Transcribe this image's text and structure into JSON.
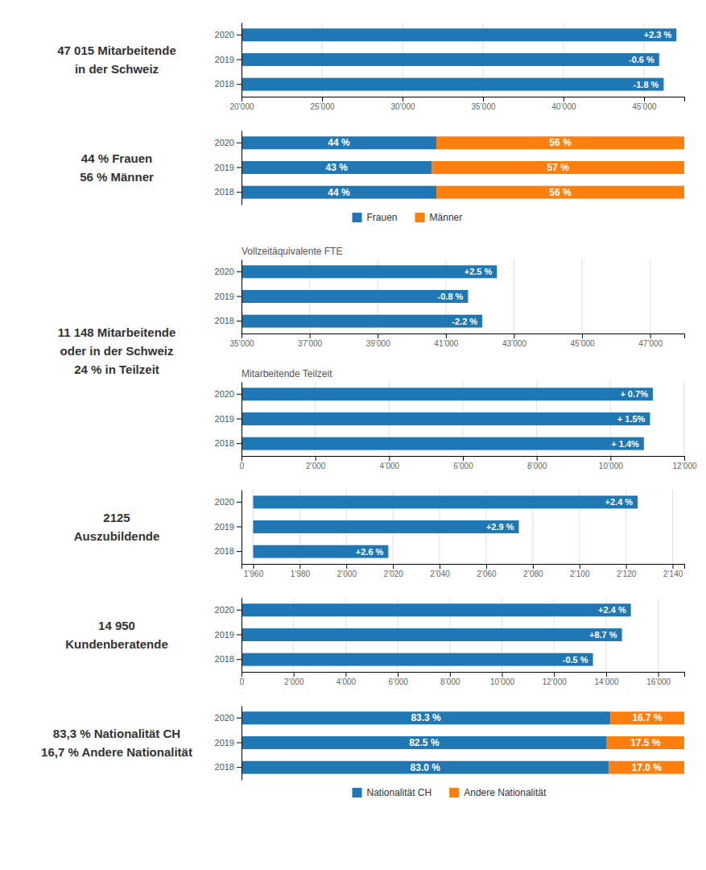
{
  "chart_data": [
    {
      "type": "bar",
      "orientation": "horizontal",
      "title": [
        "47 015 Mitarbeitende",
        "in der Schweiz"
      ],
      "categories": [
        "2020",
        "2019",
        "2018"
      ],
      "values": [
        47015,
        45940,
        46220
      ],
      "bar_start": 20000,
      "annotations": [
        "+2.3 %",
        "-0.6 %",
        "-1.8 %"
      ],
      "xlim": [
        20000,
        47500
      ],
      "xticks": [
        {
          "value": 20000,
          "label": "20’000"
        },
        {
          "value": 25000,
          "label": "25’000"
        },
        {
          "value": 30000,
          "label": "30’000"
        },
        {
          "value": 35000,
          "label": "35’000"
        },
        {
          "value": 40000,
          "label": "40’000"
        },
        {
          "value": 45000,
          "label": "45’000"
        }
      ],
      "grid": true
    },
    {
      "type": "bar",
      "orientation": "horizontal",
      "stacked": true,
      "title": [
        "44 % Frauen",
        "56 % Männer"
      ],
      "categories": [
        "2020",
        "2019",
        "2018"
      ],
      "series": [
        {
          "name": "Frauen",
          "values": [
            44,
            43,
            44
          ],
          "value_labels": [
            "44 %",
            "43 %",
            "44 %"
          ]
        },
        {
          "name": "Männer",
          "values": [
            56,
            57,
            56
          ],
          "value_labels": [
            "56 %",
            "57 %",
            "56 %"
          ]
        }
      ],
      "data_labels": true,
      "xlim": [
        0,
        100
      ],
      "tick_labels": "y",
      "grid": false,
      "legend": "bottom"
    },
    {
      "type": "bar",
      "orientation": "horizontal",
      "subtitle": "Vollzeitäquivalente FTE",
      "categories": [
        "2020",
        "2019",
        "2018"
      ],
      "values": [
        42500,
        41650,
        42070
      ],
      "bar_start": 35000,
      "annotations": [
        "+2.5 %",
        "-0.8 %",
        "-2.2 %"
      ],
      "xlim": [
        35000,
        48000
      ],
      "xticks": [
        {
          "value": 35000,
          "label": "35’000"
        },
        {
          "value": 37000,
          "label": "37’000"
        },
        {
          "value": 39000,
          "label": "39’000"
        },
        {
          "value": 41000,
          "label": "41’000"
        },
        {
          "value": 43000,
          "label": "43’000"
        },
        {
          "value": 45000,
          "label": "45’000"
        },
        {
          "value": 47000,
          "label": "47’000"
        }
      ],
      "grid": true
    },
    {
      "type": "bar",
      "orientation": "horizontal",
      "title": [
        "11 148  Mitarbeitende",
        "oder  in der Schweiz",
        "24 %  in Teilzeit"
      ],
      "subtitle": "Mitarbeitende Teilzeit",
      "categories": [
        "2020",
        "2019",
        "2018"
      ],
      "values": [
        11148,
        11071,
        10906
      ],
      "annotations": [
        "+ 0.7%",
        "+ 1.5%",
        "+ 1.4%"
      ],
      "xlim": [
        0,
        12000
      ],
      "xticks": [
        0,
        {
          "value": 2000,
          "label": "2’000"
        },
        {
          "value": 4000,
          "label": "4’000"
        },
        {
          "value": 6000,
          "label": "6’000"
        },
        {
          "value": 8000,
          "label": "8’000"
        },
        {
          "value": 10000,
          "label": "10’000"
        },
        {
          "value": 12000,
          "label": "12’000"
        }
      ],
      "grid": true
    },
    {
      "type": "bar",
      "orientation": "horizontal",
      "title": [
        "2125",
        "Auszubildende"
      ],
      "categories": [
        "2020",
        "2019",
        "2018"
      ],
      "values": [
        2125,
        2074,
        2018
      ],
      "bar_start": 1960,
      "annotations": [
        "+2.4 %",
        "+2.9 %",
        "+2.6 %"
      ],
      "xlim": [
        1955,
        2145
      ],
      "xticks": [
        {
          "value": 1960,
          "label": "1’960"
        },
        {
          "value": 1980,
          "label": "1’980"
        },
        {
          "value": 2000,
          "label": "2’000"
        },
        {
          "value": 2020,
          "label": "2’020"
        },
        {
          "value": 2040,
          "label": "2’040"
        },
        {
          "value": 2060,
          "label": "2’060"
        },
        {
          "value": 2080,
          "label": "2’080"
        },
        {
          "value": 2100,
          "label": "2’100"
        },
        {
          "value": 2120,
          "label": "2’120"
        },
        {
          "value": 2140,
          "label": "2’140"
        }
      ],
      "grid": true
    },
    {
      "type": "bar",
      "orientation": "horizontal",
      "title": [
        "14 950",
        "Kundenberatende"
      ],
      "categories": [
        "2020",
        "2019",
        "2018"
      ],
      "values": [
        14950,
        14607,
        13494
      ],
      "annotations": [
        "+2.4 %",
        "+8.7 %",
        "-0.5 %"
      ],
      "xlim": [
        0,
        17000
      ],
      "xticks": [
        0,
        {
          "value": 2000,
          "label": "2’000"
        },
        {
          "value": 4000,
          "label": "4’000"
        },
        {
          "value": 6000,
          "label": "6’000"
        },
        {
          "value": 8000,
          "label": "8’000"
        },
        {
          "value": 10000,
          "label": "10’000"
        },
        {
          "value": 12000,
          "label": "12’000"
        },
        {
          "value": 14000,
          "label": "14’000"
        },
        {
          "value": 16000,
          "label": "16’000"
        }
      ],
      "grid": true
    },
    {
      "type": "bar",
      "orientation": "horizontal",
      "stacked": true,
      "title": [
        "83,3 % Nationalität CH",
        "16,7 % Andere Nationalität"
      ],
      "categories": [
        "2020",
        "2019",
        "2018"
      ],
      "series": [
        {
          "name": "Nationalität CH",
          "values": [
            83.3,
            82.5,
            83.0
          ],
          "value_labels": [
            "83.3 %",
            "82.5 %",
            "83.0 %"
          ]
        },
        {
          "name": "Andere Nationalität",
          "values": [
            16.7,
            17.5,
            17.0
          ],
          "value_labels": [
            "16.7 %",
            "17.5 %",
            "17.0 %"
          ]
        }
      ],
      "data_labels": true,
      "xlim": [
        0,
        100
      ],
      "tick_labels": "y",
      "grid": false,
      "legend": "bottom"
    }
  ]
}
